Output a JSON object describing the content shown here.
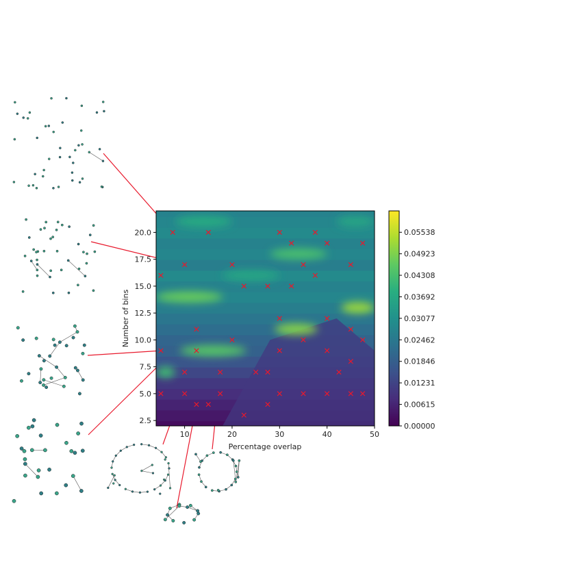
{
  "chart_data": {
    "type": "heatmap",
    "subtype": "filled-contour",
    "xlabel": "Percentage overlap",
    "ylabel": "Number of bins",
    "xlim": [
      4,
      50
    ],
    "ylim": [
      2,
      22
    ],
    "x_ticks": [
      "10",
      "20",
      "30",
      "40",
      "50"
    ],
    "y_ticks": [
      "2.5",
      "5.0",
      "7.5",
      "10.0",
      "12.5",
      "15.0",
      "17.5",
      "20.0"
    ],
    "colorbar": {
      "colormap": "viridis",
      "min": 0.0,
      "max": 0.0615,
      "tick_labels": [
        "0.00000",
        "0.00615",
        "0.01231",
        "0.01846",
        "0.02462",
        "0.03077",
        "0.03692",
        "0.04308",
        "0.04923",
        "0.05538"
      ]
    },
    "hotspots": [
      {
        "x": [
          4,
          18
        ],
        "y": 14.0,
        "value": 0.047
      },
      {
        "x": [
          29,
          38
        ],
        "y": 11.0,
        "value": 0.05
      },
      {
        "x": [
          43,
          50
        ],
        "y": 13.0,
        "value": 0.052
      },
      {
        "x": [
          28,
          40
        ],
        "y": 18.0,
        "value": 0.043
      },
      {
        "x": [
          9,
          23
        ],
        "y": 9.0,
        "value": 0.045
      },
      {
        "x": [
          4,
          8
        ],
        "y": 7.0,
        "value": 0.042
      },
      {
        "x": [
          8,
          20
        ],
        "y": 21.0,
        "value": 0.038
      },
      {
        "x": [
          42,
          50
        ],
        "y": 21.0,
        "value": 0.036
      },
      {
        "x": [
          18,
          30
        ],
        "y": 16.0,
        "value": 0.036
      }
    ],
    "sample_points": {
      "marker": "x",
      "color": "#e8192c",
      "points": [
        [
          7.5,
          20
        ],
        [
          15,
          20
        ],
        [
          30,
          20
        ],
        [
          37.5,
          20
        ],
        [
          32.5,
          19
        ],
        [
          40,
          19
        ],
        [
          47.5,
          19
        ],
        [
          10,
          17
        ],
        [
          20,
          17
        ],
        [
          35,
          17
        ],
        [
          45,
          17
        ],
        [
          5,
          16
        ],
        [
          37.5,
          16
        ],
        [
          22.5,
          15
        ],
        [
          27.5,
          15
        ],
        [
          32.5,
          15
        ],
        [
          30,
          12
        ],
        [
          40,
          12
        ],
        [
          12.5,
          11
        ],
        [
          45,
          11
        ],
        [
          20,
          10
        ],
        [
          35,
          10
        ],
        [
          47.5,
          10
        ],
        [
          5,
          9
        ],
        [
          12.5,
          9
        ],
        [
          30,
          9
        ],
        [
          40,
          9
        ],
        [
          45,
          8
        ],
        [
          10,
          7
        ],
        [
          17.5,
          7
        ],
        [
          25,
          7
        ],
        [
          27.5,
          7
        ],
        [
          42.5,
          7
        ],
        [
          5,
          5
        ],
        [
          10,
          5
        ],
        [
          17.5,
          5
        ],
        [
          30,
          5
        ],
        [
          35,
          5
        ],
        [
          40,
          5
        ],
        [
          45,
          5
        ],
        [
          47.5,
          5
        ],
        [
          12.5,
          4
        ],
        [
          15,
          4
        ],
        [
          27.5,
          4
        ],
        [
          22.5,
          3
        ]
      ]
    },
    "insets": [
      {
        "target": [
          7.5,
          20
        ]
      },
      {
        "target": [
          10,
          17
        ]
      },
      {
        "target": [
          5,
          9
        ]
      },
      {
        "target": [
          10,
          10
        ]
      },
      {
        "target": [
          12.5,
          9
        ]
      },
      {
        "target": [
          17.5,
          7
        ]
      },
      {
        "target": [
          12.5,
          4
        ]
      }
    ]
  }
}
